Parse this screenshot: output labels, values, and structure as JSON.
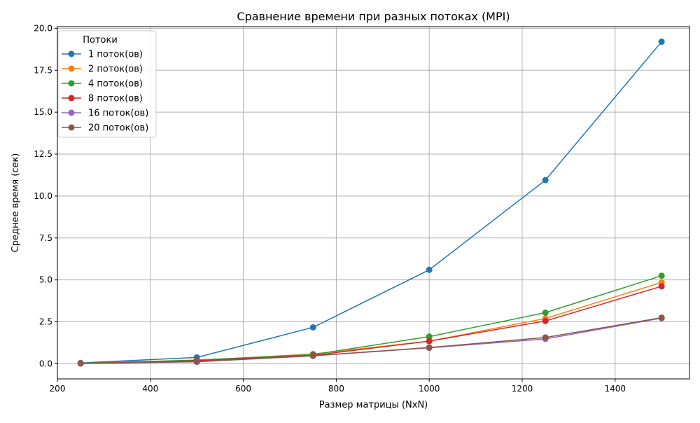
{
  "chart_data": {
    "type": "line",
    "title": "Сравнение времени при разных потоках (MPI)",
    "xlabel": "Размер матрицы (NxN)",
    "ylabel": "Среднее время (сек)",
    "xlim": [
      200,
      1560
    ],
    "ylim": [
      -0.9,
      20.1
    ],
    "xticks": [
      200,
      400,
      600,
      800,
      1000,
      1200,
      1400
    ],
    "yticks": [
      0.0,
      2.5,
      5.0,
      7.5,
      10.0,
      12.5,
      15.0,
      17.5,
      20.0
    ],
    "xtick_labels": [
      "200",
      "400",
      "600",
      "800",
      "1000",
      "1200",
      "1400"
    ],
    "ytick_labels": [
      "0.0",
      "2.5",
      "5.0",
      "7.5",
      "10.0",
      "12.5",
      "15.0",
      "17.5",
      "20.0"
    ],
    "grid": true,
    "legend_title": "Потоки",
    "legend_position": "top-left",
    "x": [
      250,
      500,
      750,
      1000,
      1250,
      1500
    ],
    "series": [
      {
        "name": "1 поток(ов)",
        "color": "#1f77b4",
        "values": [
          0.05,
          0.38,
          2.17,
          5.6,
          10.95,
          19.2
        ]
      },
      {
        "name": "2 поток(ов)",
        "color": "#ff7f0e",
        "values": [
          0.03,
          0.2,
          0.58,
          1.35,
          2.7,
          4.85
        ]
      },
      {
        "name": "4 поток(ов)",
        "color": "#2ca02c",
        "values": [
          0.03,
          0.22,
          0.55,
          1.62,
          3.05,
          5.25
        ]
      },
      {
        "name": "8 поток(ов)",
        "color": "#d62728",
        "values": [
          0.02,
          0.18,
          0.5,
          1.35,
          2.55,
          4.62
        ]
      },
      {
        "name": "16 поток(ов)",
        "color": "#9467bd",
        "values": [
          0.02,
          0.12,
          0.47,
          0.95,
          1.48,
          2.72
        ]
      },
      {
        "name": "20 поток(ов)",
        "color": "#8c564b",
        "values": [
          0.02,
          0.13,
          0.48,
          0.97,
          1.57,
          2.75
        ]
      }
    ]
  }
}
